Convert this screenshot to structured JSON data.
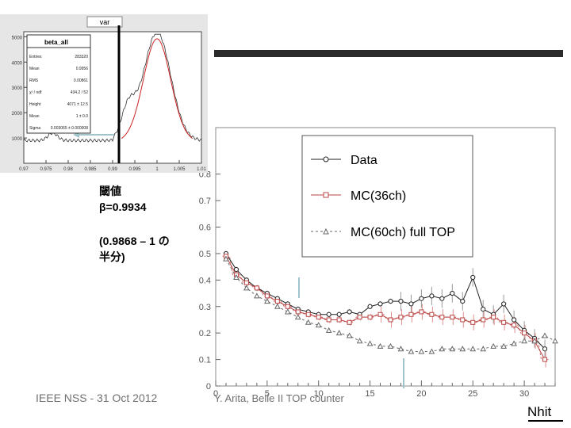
{
  "slide": {
    "threshold_label": "閾値",
    "threshold_value": "β=0.9934",
    "note_line1": "(0.9868 – 1 の",
    "note_line2": "半分)",
    "footer_left": "IEEE NSS - 31 Oct 2012",
    "footer_center": "Y. Arita, Belle II TOP counter",
    "logo_text": "Nhit"
  },
  "chart_data": [
    {
      "type": "histogram",
      "title": "var",
      "stats_box": {
        "name": "beta_all",
        "rows": [
          {
            "label": "Entries",
            "value": "283320"
          },
          {
            "label": "Mean",
            "value": "0.9956"
          },
          {
            "label": "RMS",
            "value": "0.00861"
          },
          {
            "label": "χ² / ndf",
            "value": "434.2 / 52"
          },
          {
            "label": "Height",
            "value": "4071 ± 12.5"
          },
          {
            "label": "Mean",
            "value": "1 ± 0.0"
          },
          {
            "label": "Sigma",
            "value": "0.003065 ± 0.000008"
          }
        ]
      },
      "y_ticks": [
        "5000",
        "4000",
        "3000",
        "2000",
        "1000"
      ],
      "x_ticks": [
        "0.97",
        "0.975",
        "0.98",
        "0.985",
        "0.99",
        "0.995",
        "1",
        "1.005",
        "1.01"
      ],
      "ylim": [
        0,
        5200
      ],
      "xlim": [
        0.97,
        1.01
      ],
      "threshold_x": 0.9934,
      "fit_color": "#cc2222",
      "data_color": "#333333",
      "line_color": "#000000"
    },
    {
      "type": "line",
      "x_ticks": [
        "0",
        "5",
        "10",
        "15",
        "20",
        "25",
        "30"
      ],
      "y_ticks": [
        "0",
        "0.1",
        "0.2",
        "0.3",
        "0.4",
        "0.5",
        "0.6",
        "0.7",
        "0.8"
      ],
      "xlim": [
        0,
        33
      ],
      "ylim": [
        0,
        0.82
      ],
      "legend_position": "top-right",
      "series": [
        {
          "name": "Data",
          "color": "#222222",
          "marker": "circle",
          "x": [
            1,
            2,
            3,
            4,
            5,
            6,
            7,
            8,
            9,
            10,
            11,
            12,
            13,
            14,
            15,
            16,
            17,
            18,
            19,
            20,
            21,
            22,
            23,
            24,
            25,
            26,
            27,
            28,
            29,
            30,
            31,
            32
          ],
          "y": [
            0.5,
            0.44,
            0.4,
            0.37,
            0.35,
            0.33,
            0.31,
            0.29,
            0.28,
            0.27,
            0.27,
            0.27,
            0.28,
            0.27,
            0.3,
            0.31,
            0.32,
            0.32,
            0.31,
            0.33,
            0.34,
            0.33,
            0.35,
            0.32,
            0.41,
            0.29,
            0.27,
            0.31,
            0.25,
            0.21,
            0.18,
            0.14
          ]
        },
        {
          "name": "MC(36ch)",
          "color": "#bb4444",
          "marker": "square",
          "x": [
            1,
            2,
            3,
            4,
            5,
            6,
            7,
            8,
            9,
            10,
            11,
            12,
            13,
            14,
            15,
            16,
            17,
            18,
            19,
            20,
            21,
            22,
            23,
            24,
            25,
            26,
            27,
            28,
            29,
            30,
            31,
            32
          ],
          "y": [
            0.49,
            0.42,
            0.39,
            0.37,
            0.34,
            0.32,
            0.3,
            0.28,
            0.27,
            0.26,
            0.25,
            0.25,
            0.24,
            0.26,
            0.26,
            0.27,
            0.25,
            0.26,
            0.27,
            0.28,
            0.27,
            0.26,
            0.26,
            0.25,
            0.24,
            0.25,
            0.26,
            0.24,
            0.23,
            0.2,
            0.17,
            0.1
          ]
        },
        {
          "name": "MC(60ch) full TOP",
          "color": "#666666",
          "marker": "triangle",
          "x": [
            1,
            2,
            3,
            4,
            5,
            6,
            7,
            8,
            9,
            10,
            11,
            12,
            13,
            14,
            15,
            16,
            17,
            18,
            19,
            20,
            21,
            22,
            23,
            24,
            25,
            26,
            27,
            28,
            29,
            30,
            31,
            32,
            33
          ],
          "y": [
            0.48,
            0.41,
            0.37,
            0.34,
            0.32,
            0.3,
            0.28,
            0.26,
            0.24,
            0.23,
            0.21,
            0.2,
            0.19,
            0.17,
            0.16,
            0.15,
            0.15,
            0.14,
            0.13,
            0.13,
            0.13,
            0.14,
            0.14,
            0.14,
            0.14,
            0.14,
            0.15,
            0.15,
            0.16,
            0.17,
            0.17,
            0.19,
            0.17
          ]
        }
      ]
    }
  ]
}
